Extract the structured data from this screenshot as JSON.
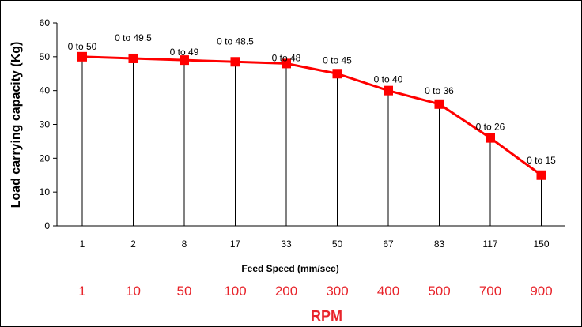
{
  "chart_data": {
    "type": "line",
    "categories": [
      "1",
      "2",
      "8",
      "17",
      "33",
      "50",
      "67",
      "83",
      "117",
      "150"
    ],
    "series": [
      {
        "values": [
          50,
          49.5,
          49,
          48.5,
          48,
          45,
          40,
          36,
          26,
          15
        ],
        "data_labels": [
          "0 to 50",
          "0 to 49.5",
          "0 to 49",
          "0 to 48.5",
          "0 to 48",
          "0 to 45",
          "0 to 40",
          "0 to 36",
          "0 to 26",
          "0 to 15"
        ]
      }
    ],
    "xlabel": "Feed Speed (mm/sec)",
    "ylabel": "Load carrying capacity (Kg)",
    "ylim": [
      0,
      60
    ],
    "yticks": [
      0,
      10,
      20,
      30,
      40,
      50,
      60
    ],
    "grid": false,
    "drop_lines": true,
    "secondary_axis": {
      "label": "RPM",
      "ticks": [
        "1",
        "10",
        "50",
        "100",
        "200",
        "300",
        "400",
        "500",
        "700",
        "900"
      ]
    },
    "colors": {
      "series": "#ff0000",
      "rpm": "#e8242b",
      "axis": "#000000"
    }
  }
}
